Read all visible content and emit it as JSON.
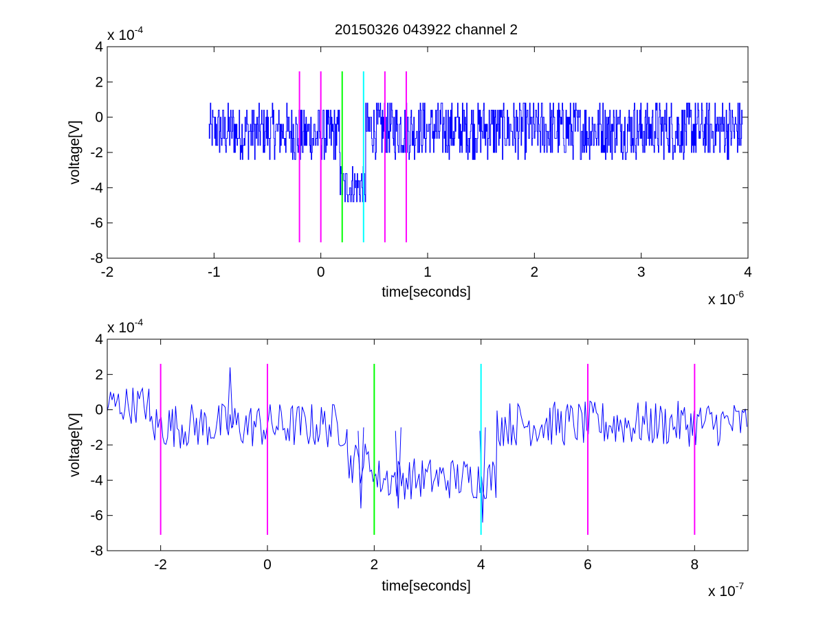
{
  "figure_title": "20150326 043922 channel 2",
  "chart_data": [
    {
      "type": "line",
      "xlabel": "time[seconds]",
      "ylabel": "voltage[V]",
      "x_exponent_label": "x 10",
      "x_exponent": "-6",
      "y_exponent_label": "x 10",
      "y_exponent": "-4",
      "xlim": [
        -2,
        4
      ],
      "ylim": [
        -8,
        4
      ],
      "x_ticks": [
        -2,
        -1,
        0,
        1,
        2,
        3,
        4
      ],
      "x_tick_labels": [
        "-2",
        "-1",
        "0",
        "1",
        "2",
        "3",
        "4"
      ],
      "y_ticks": [
        -8,
        -6,
        -4,
        -2,
        0,
        2,
        4
      ],
      "y_tick_labels": [
        "-8",
        "-6",
        "-4",
        "-2",
        "0",
        "2",
        "4"
      ],
      "grid": false,
      "noise_color": "#0000ff",
      "series": [
        {
          "style": "step-noise",
          "color": "#0000ff",
          "segments": [
            {
              "x_start": -1.05,
              "x_end": -0.25,
              "mean": -0.8,
              "amp": 1.5
            },
            {
              "x_start": -0.25,
              "x_end": 0.18,
              "mean": -1.0,
              "amp": 1.6
            },
            {
              "x_start": 0.18,
              "x_end": 0.42,
              "mean": -3.9,
              "amp": 1.2
            },
            {
              "x_start": 0.42,
              "x_end": 3.95,
              "mean": -0.7,
              "amp": 1.6
            }
          ]
        }
      ],
      "markers": [
        {
          "x": -0.2,
          "color": "#ff00ff"
        },
        {
          "x": 0.0,
          "color": "#ff00ff"
        },
        {
          "x": 0.2,
          "color": "#00ff00"
        },
        {
          "x": 0.4,
          "color": "#00ffff"
        },
        {
          "x": 0.6,
          "color": "#ff00ff"
        },
        {
          "x": 0.8,
          "color": "#ff00ff"
        }
      ],
      "marker_range": [
        -7.1,
        2.6
      ]
    },
    {
      "type": "line",
      "xlabel": "time[seconds]",
      "ylabel": "voltage[V]",
      "x_exponent_label": "x 10",
      "x_exponent": "-7",
      "y_exponent_label": "x 10",
      "y_exponent": "-4",
      "xlim": [
        -3,
        9
      ],
      "ylim": [
        -8,
        4
      ],
      "x_ticks": [
        -2,
        0,
        2,
        4,
        6,
        8
      ],
      "x_tick_labels": [
        "-2",
        "0",
        "2",
        "4",
        "6",
        "8"
      ],
      "y_ticks": [
        -8,
        -6,
        -4,
        -2,
        0,
        2,
        4
      ],
      "y_tick_labels": [
        "-8",
        "-6",
        "-4",
        "-2",
        "0",
        "2",
        "4"
      ],
      "grid": false,
      "series": [
        {
          "style": "smooth-noise",
          "color": "#0000ff",
          "segments": [
            {
              "x_start": -3.0,
              "x_end": -2.2,
              "mean": 0.3,
              "amp": 1.1
            },
            {
              "x_start": -2.2,
              "x_end": 1.5,
              "mean": -0.9,
              "amp": 1.3
            },
            {
              "x_start": 1.5,
              "x_end": 2.0,
              "mean": -3.0,
              "amp": 1.2
            },
            {
              "x_start": 2.0,
              "x_end": 4.3,
              "mean": -3.9,
              "amp": 1.2
            },
            {
              "x_start": 4.3,
              "x_end": 9.0,
              "mean": -0.8,
              "amp": 1.3
            }
          ],
          "highlights": [
            {
              "x": -0.7,
              "y": 2.4
            },
            {
              "x": 4.03,
              "y": -6.4
            },
            {
              "x": 1.75,
              "y": -5.6
            },
            {
              "x": 2.45,
              "y": -5.6
            }
          ]
        }
      ],
      "markers": [
        {
          "x": -2.0,
          "color": "#ff00ff"
        },
        {
          "x": 0.0,
          "color": "#ff00ff"
        },
        {
          "x": 2.0,
          "color": "#00ff00"
        },
        {
          "x": 4.0,
          "color": "#00ffff"
        },
        {
          "x": 6.0,
          "color": "#ff00ff"
        },
        {
          "x": 8.0,
          "color": "#ff00ff"
        }
      ],
      "marker_range": [
        -7.1,
        2.6
      ]
    }
  ]
}
